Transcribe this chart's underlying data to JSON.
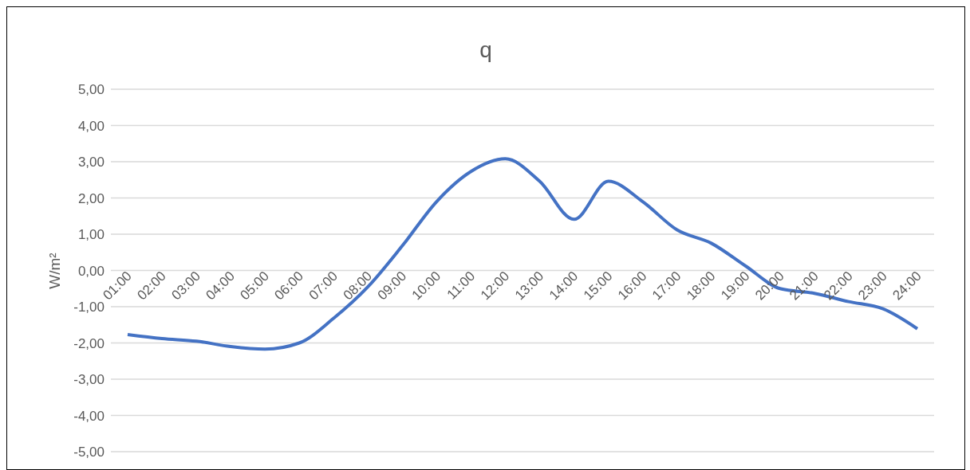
{
  "chart_data": {
    "type": "line",
    "title": "q",
    "ylabel": "W/m²",
    "categories": [
      "01:00",
      "02:00",
      "03:00",
      "04:00",
      "05:00",
      "06:00",
      "07:00",
      "08:00",
      "09:00",
      "10:00",
      "11:00",
      "12:00",
      "13:00",
      "14:00",
      "15:00",
      "16:00",
      "17:00",
      "18:00",
      "19:00",
      "20:00",
      "21:00",
      "22:00",
      "23:00",
      "24:00"
    ],
    "series": [
      {
        "color": "#4472c4",
        "values": [
          -1.77,
          -1.88,
          -1.95,
          -2.1,
          -2.17,
          -2.0,
          -1.32,
          -0.45,
          0.68,
          1.9,
          2.73,
          3.08,
          2.46,
          1.41,
          2.46,
          1.9,
          1.12,
          0.75,
          0.12,
          -0.5,
          -0.63,
          -0.86,
          -1.06,
          -1.61
        ]
      }
    ],
    "ylim": [
      -5,
      5
    ],
    "yticks": [
      {
        "value": -5,
        "label": "-5,00"
      },
      {
        "value": -4,
        "label": "-4,00"
      },
      {
        "value": -3,
        "label": "-3,00"
      },
      {
        "value": -2,
        "label": "-2,00"
      },
      {
        "value": -1,
        "label": "-1,00"
      },
      {
        "value": 0,
        "label": "0,00"
      },
      {
        "value": 1,
        "label": "1,00"
      },
      {
        "value": 2,
        "label": "2,00"
      },
      {
        "value": 3,
        "label": "3,00"
      },
      {
        "value": 4,
        "label": "4,00"
      },
      {
        "value": 5,
        "label": "5,00"
      }
    ],
    "grid": "y",
    "legend": false,
    "marker": "none",
    "line_style": "solid"
  }
}
